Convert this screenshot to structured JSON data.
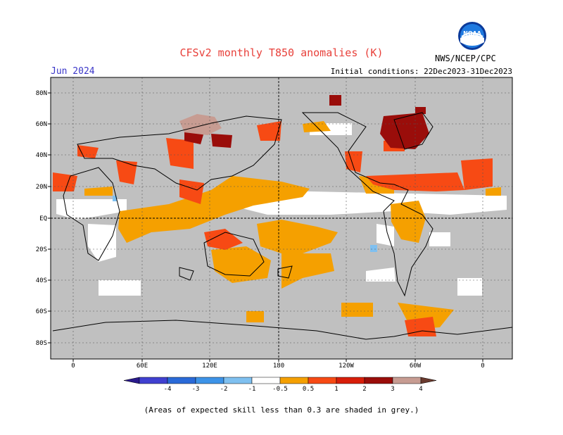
{
  "title": "CFSv2 monthly T850 anomalies (K)",
  "month": "Jun 2024",
  "initial_conditions": "Initial conditions: 22Dec2023-31Dec2023",
  "agency": "NWS/NCEP/CPC",
  "logo_text": "NOAA",
  "note": "(Areas of expected skill less than 0.3 are shaded in grey.)",
  "lat_labels": [
    "80N",
    "60N",
    "40N",
    "20N",
    "EQ",
    "20S",
    "40S",
    "60S",
    "80S"
  ],
  "lon_labels": [
    "0",
    "60E",
    "120E",
    "180",
    "120W",
    "60W",
    "0"
  ],
  "colorbar": {
    "ticks": [
      "-4",
      "-3",
      "-2",
      "-1",
      "-0.5",
      "0.5",
      "1",
      "2",
      "3",
      "4"
    ],
    "colors": [
      "#2a1a8c",
      "#4040d0",
      "#2a6ad8",
      "#3d93e8",
      "#7fc0f0",
      "#ffffff",
      "#f5a000",
      "#f74a14",
      "#d81e0a",
      "#9a0d0a",
      "#c79c92",
      "#6a3a2e"
    ]
  },
  "colors": {
    "ocean_grey": "#c0c0c0",
    "title": "#e8403a",
    "month": "#3a36c8"
  }
}
